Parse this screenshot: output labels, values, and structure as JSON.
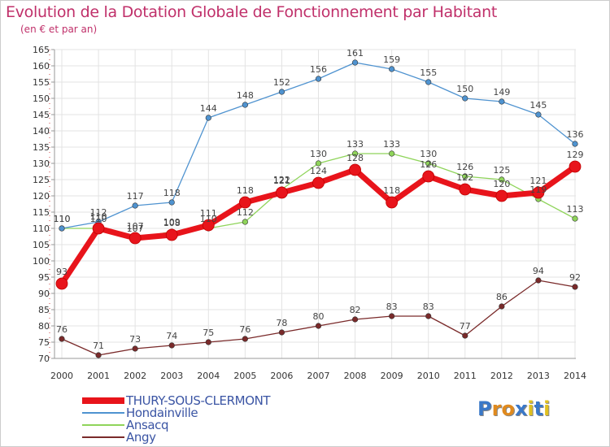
{
  "title": "Evolution de la Dotation Globale de Fonctionnement par Habitant",
  "subtitle": "(en € et par an)",
  "logo": {
    "text": "Proxiti",
    "letters": [
      "P",
      "r",
      "o",
      "x",
      "i",
      "t",
      "i"
    ],
    "colors": [
      "#3a78c8",
      "#e08a1e",
      "#e08a1e",
      "#3a78c8",
      "#e0c020",
      "#3a78c8",
      "#e0c020"
    ]
  },
  "chart_data": {
    "type": "line",
    "x": [
      2000,
      2001,
      2002,
      2003,
      2004,
      2005,
      2006,
      2007,
      2008,
      2009,
      2010,
      2011,
      2012,
      2013,
      2014
    ],
    "ylim": [
      70,
      165
    ],
    "yticks": [
      70,
      75,
      80,
      85,
      90,
      95,
      100,
      105,
      110,
      115,
      120,
      125,
      130,
      135,
      140,
      145,
      150,
      155,
      160,
      165
    ],
    "grid": true,
    "legend_position": "bottom-left",
    "series": [
      {
        "name": "THURY-SOUS-CLERMONT",
        "color": "#e8141b",
        "values": [
          93,
          110,
          107,
          108,
          111,
          118,
          121,
          124,
          128,
          118,
          126,
          122,
          120,
          121,
          129
        ]
      },
      {
        "name": "Hondainville",
        "color": "#4f93d0",
        "values": [
          110,
          112,
          117,
          118,
          144,
          148,
          152,
          156,
          161,
          159,
          155,
          150,
          149,
          145,
          136
        ]
      },
      {
        "name": "Ansacq",
        "color": "#8fd45a",
        "values": [
          110,
          110,
          107,
          109,
          110,
          112,
          122,
          130,
          133,
          133,
          130,
          126,
          125,
          119,
          113
        ]
      },
      {
        "name": "Angy",
        "color": "#7a2a2a",
        "values": [
          76,
          71,
          73,
          74,
          75,
          76,
          78,
          80,
          82,
          83,
          83,
          77,
          86,
          94,
          92
        ]
      }
    ]
  }
}
